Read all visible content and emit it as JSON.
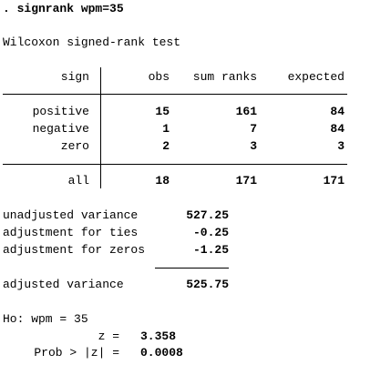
{
  "command": ". signrank wpm=35",
  "title": "Wilcoxon signed-rank test",
  "table": {
    "headers": [
      "sign",
      "obs",
      "sum ranks",
      "expected"
    ],
    "rows": [
      [
        "positive",
        15,
        161,
        84
      ],
      [
        "negative",
        1,
        7,
        84
      ],
      [
        "zero",
        2,
        3,
        3
      ]
    ],
    "total": [
      "all",
      18,
      171,
      171
    ]
  },
  "variance": {
    "rows": [
      {
        "label": "unadjusted variance",
        "value": 527.25
      },
      {
        "label": "adjustment for ties",
        "value": -0.25
      },
      {
        "label": "adjustment for zeros",
        "value": -1.25
      }
    ],
    "adjusted": {
      "label": "adjusted variance",
      "value": 525.75
    }
  },
  "hypothesis": "Ho: wpm = 35",
  "tests": [
    {
      "label": "z =",
      "value": 3.358
    },
    {
      "label": "Prob > |z| =",
      "value": 0.0008
    }
  ]
}
